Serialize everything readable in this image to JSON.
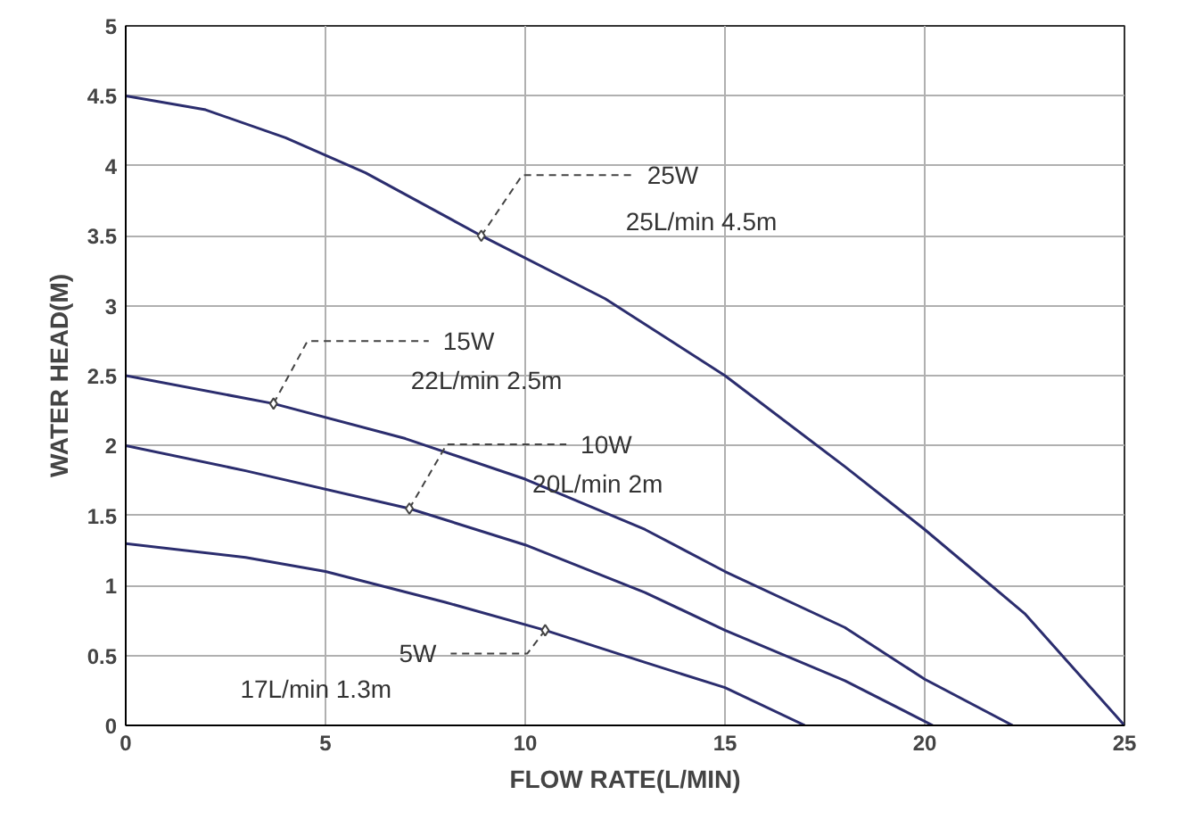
{
  "chart_data": {
    "type": "line",
    "xlabel": "FLOW RATE(L/MIN)",
    "ylabel": "WATER HEAD(M)",
    "xlim": [
      0,
      25
    ],
    "ylim": [
      0,
      5
    ],
    "xticks": [
      0,
      5,
      10,
      15,
      20,
      25
    ],
    "yticks": [
      0,
      0.5,
      1,
      1.5,
      2,
      2.5,
      3,
      3.5,
      4,
      4.5,
      5
    ],
    "grid": true,
    "marker": "none",
    "line_style": "solid",
    "series": [
      {
        "color": "#2b2d6e",
        "x": [
          0,
          2,
          4,
          6,
          8.9,
          12,
          15,
          18,
          20,
          22.5,
          25
        ],
        "values": [
          4.5,
          4.4,
          4.2,
          3.95,
          3.5,
          3.05,
          2.5,
          1.85,
          1.4,
          0.8,
          0
        ]
      },
      {
        "color": "#2b2d6e",
        "x": [
          0,
          3.7,
          7,
          10,
          13,
          15,
          18,
          20,
          22.2
        ],
        "values": [
          2.5,
          2.3,
          2.05,
          1.76,
          1.4,
          1.1,
          0.7,
          0.33,
          0
        ]
      },
      {
        "color": "#2b2d6e",
        "x": [
          0,
          3,
          7.1,
          10,
          13,
          15,
          18,
          20.2
        ],
        "values": [
          2.0,
          1.82,
          1.55,
          1.29,
          0.95,
          0.68,
          0.32,
          0
        ]
      },
      {
        "color": "#2b2d6e",
        "x": [
          0,
          3,
          5,
          8,
          10.5,
          13,
          15,
          17
        ],
        "values": [
          1.3,
          1.2,
          1.1,
          0.88,
          0.68,
          0.45,
          0.27,
          0
        ]
      }
    ],
    "annotations": [
      {
        "text": "25W",
        "x": 8.9,
        "y": 3.5
      },
      "25L/min 4.5m",
      {
        "text": "15W",
        "x": 3.7,
        "y": 2.3
      },
      "22L/min 2.5m",
      {
        "text": "10W",
        "x": 7.1,
        "y": 1.55
      },
      "20L/min 2m",
      {
        "text": "5W",
        "x": 10.5,
        "y": 0.68
      },
      "17L/min 1.3m"
    ]
  }
}
